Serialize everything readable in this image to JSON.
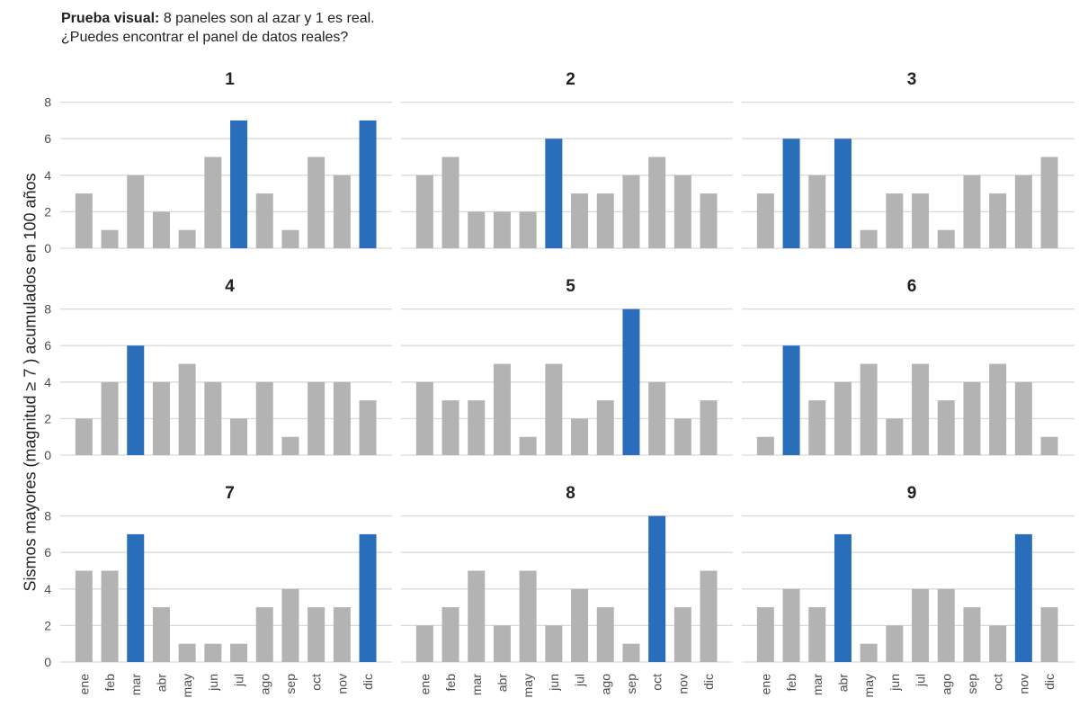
{
  "header": {
    "title_bold": "Prueba visual:",
    "title_rest": " 8 paneles son al azar y 1 es real.",
    "subtitle": "¿Puedes encontrar el panel de datos reales?"
  },
  "chart_data": {
    "type": "bar",
    "ylabel": "Sismos mayores (magnitud ≥ 7 ) acumulados en 100 años",
    "categories": [
      "ene",
      "feb",
      "mar",
      "abr",
      "may",
      "jun",
      "jul",
      "ago",
      "sep",
      "oct",
      "nov",
      "dic"
    ],
    "ylim": [
      0,
      8
    ],
    "yticks": [
      0,
      2,
      4,
      6,
      8
    ],
    "grid": true,
    "colors": {
      "default": "#b3b3b3",
      "max": "#2a6ebb",
      "grid": "#d9d9d9",
      "text": "#4d4d4d"
    },
    "panels": [
      {
        "title": "1",
        "values": [
          3,
          1,
          4,
          2,
          1,
          5,
          7,
          3,
          1,
          5,
          4,
          7
        ]
      },
      {
        "title": "2",
        "values": [
          4,
          5,
          2,
          2,
          2,
          6,
          3,
          3,
          4,
          5,
          4,
          3
        ]
      },
      {
        "title": "3",
        "values": [
          3,
          6,
          4,
          6,
          1,
          3,
          3,
          1,
          4,
          3,
          4,
          5
        ]
      },
      {
        "title": "4",
        "values": [
          2,
          4,
          6,
          4,
          5,
          4,
          2,
          4,
          1,
          4,
          4,
          3
        ]
      },
      {
        "title": "5",
        "values": [
          4,
          3,
          3,
          5,
          1,
          5,
          2,
          3,
          8,
          4,
          2,
          3
        ]
      },
      {
        "title": "6",
        "values": [
          1,
          6,
          3,
          4,
          5,
          2,
          5,
          3,
          4,
          5,
          4,
          1
        ]
      },
      {
        "title": "7",
        "values": [
          5,
          5,
          7,
          3,
          1,
          1,
          1,
          3,
          4,
          3,
          3,
          7
        ]
      },
      {
        "title": "8",
        "values": [
          2,
          3,
          5,
          2,
          5,
          2,
          4,
          3,
          1,
          8,
          3,
          5
        ]
      },
      {
        "title": "9",
        "values": [
          3,
          4,
          3,
          7,
          1,
          2,
          4,
          4,
          3,
          2,
          7,
          3
        ]
      }
    ]
  }
}
